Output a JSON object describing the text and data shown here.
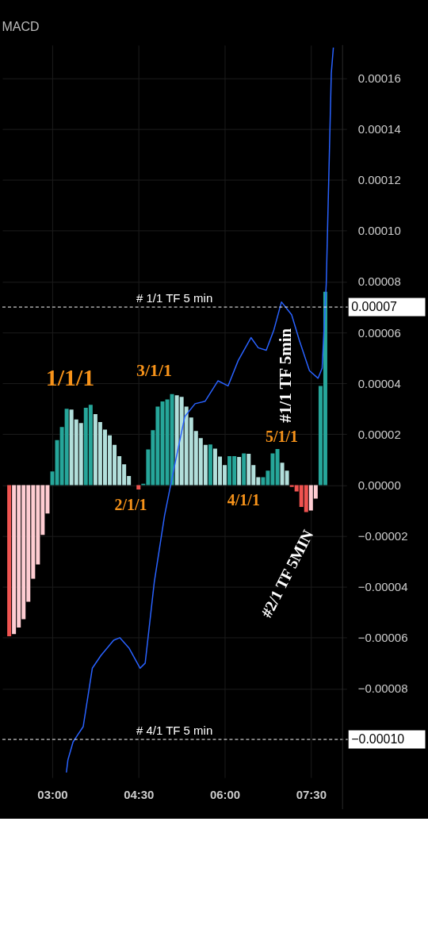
{
  "chart_data": {
    "type": "bar",
    "title": "MACD",
    "xlim": [
      2.2,
      8.05
    ],
    "ylim": [
      -0.000115,
      0.000173
    ],
    "xticks": [
      {
        "value": 3,
        "label": "03:00"
      },
      {
        "value": 4.5,
        "label": "04:30"
      },
      {
        "value": 6,
        "label": "06:00"
      },
      {
        "value": 7.5,
        "label": "07:30"
      }
    ],
    "yticks": [
      {
        "value": -8e-05,
        "label": "−0.00008"
      },
      {
        "value": -6e-05,
        "label": "−0.00006"
      },
      {
        "value": -4e-05,
        "label": "−0.00004"
      },
      {
        "value": -2e-05,
        "label": "−0.00002"
      },
      {
        "value": 0,
        "label": "0.00000"
      },
      {
        "value": 2e-05,
        "label": "0.00002"
      },
      {
        "value": 4e-05,
        "label": "0.00004"
      },
      {
        "value": 6e-05,
        "label": "0.00006"
      },
      {
        "value": 8e-05,
        "label": "0.00008"
      },
      {
        "value": 0.0001,
        "label": "0.00010"
      },
      {
        "value": 0.00012,
        "label": "0.00012"
      },
      {
        "value": 0.00014,
        "label": "0.00014"
      },
      {
        "value": 0.00016,
        "label": "0.00016"
      }
    ],
    "grid": true,
    "series": [
      {
        "x": [
          2.25,
          2.333,
          2.417,
          2.5,
          2.583,
          2.667,
          2.75,
          2.833,
          2.917,
          3,
          3.083,
          3.167,
          3.25,
          3.333,
          3.417,
          3.5,
          3.583,
          3.667,
          3.75,
          3.833,
          3.917,
          4,
          4.083,
          4.167,
          4.25,
          4.333,
          4.417,
          4.5,
          4.583,
          4.667,
          4.75,
          4.833,
          4.917,
          5,
          5.083,
          5.167,
          5.25,
          5.333,
          5.417,
          5.5,
          5.583,
          5.667,
          5.75,
          5.833,
          5.917,
          6,
          6.083,
          6.167,
          6.25,
          6.333,
          6.417,
          6.5,
          6.583,
          6.667,
          6.75,
          6.833,
          6.917,
          7,
          7.083,
          7.167,
          7.25,
          7.333,
          7.417,
          7.5,
          7.583,
          7.667,
          7.75
        ],
        "values": [
          -5.94e-05,
          -5.86e-05,
          -5.6e-05,
          -5.27e-05,
          -4.59e-05,
          -3.68e-05,
          -3.12e-05,
          -1.96e-05,
          -1.12e-05,
          5.4e-06,
          1.77e-05,
          2.28e-05,
          3e-05,
          2.97e-05,
          2.58e-05,
          2.44e-05,
          3.04e-05,
          3.16e-05,
          2.79e-05,
          2.48e-05,
          2.18e-05,
          1.96e-05,
          1.58e-05,
          1.14e-05,
          8.2e-06,
          3.6e-06,
          null,
          -1.7e-06,
          5e-07,
          1.4e-05,
          2.16e-05,
          3.09e-05,
          3.29e-05,
          3.37e-05,
          3.58e-05,
          3.53e-05,
          3.47e-05,
          3.09e-05,
          2.66e-05,
          2.13e-05,
          1.85e-05,
          1.58e-05,
          1.6e-05,
          1.43e-05,
          1.12e-05,
          7.9e-06,
          1.14e-05,
          1.14e-05,
          1.11e-05,
          1.25e-05,
          1.23e-05,
          7.9e-06,
          3.1e-06,
          3.1e-06,
          5.7e-06,
          1.25e-05,
          1.42e-05,
          8.8e-06,
          5.7e-06,
          -7e-07,
          -2.5e-06,
          -8.6e-06,
          -1.06e-05,
          -1e-05,
          -5.3e-06,
          3.9e-05,
          7.6e-05
        ],
        "colors": [
          "#ef5350",
          "#ffcdd2",
          "#ffcdd2",
          "#ffcdd2",
          "#ffcdd2",
          "#ffcdd2",
          "#ffcdd2",
          "#ffcdd2",
          "#ffcdd2",
          "#26a69a",
          "#26a69a",
          "#26a69a",
          "#26a69a",
          "#b2dfdb",
          "#b2dfdb",
          "#b2dfdb",
          "#26a69a",
          "#26a69a",
          "#b2dfdb",
          "#b2dfdb",
          "#b2dfdb",
          "#b2dfdb",
          "#b2dfdb",
          "#b2dfdb",
          "#b2dfdb",
          "#b2dfdb",
          "#b2dfdb",
          "#ef5350",
          "#26a69a",
          "#26a69a",
          "#26a69a",
          "#26a69a",
          "#26a69a",
          "#26a69a",
          "#26a69a",
          "#b2dfdb",
          "#b2dfdb",
          "#b2dfdb",
          "#b2dfdb",
          "#b2dfdb",
          "#b2dfdb",
          "#b2dfdb",
          "#26a69a",
          "#b2dfdb",
          "#b2dfdb",
          "#b2dfdb",
          "#26a69a",
          "#26a69a",
          "#b2dfdb",
          "#26a69a",
          "#b2dfdb",
          "#b2dfdb",
          "#b2dfdb",
          "#26a69a",
          "#26a69a",
          "#26a69a",
          "#26a69a",
          "#b2dfdb",
          "#b2dfdb",
          "#ef5350",
          "#ef5350",
          "#ef5350",
          "#ef5350",
          "#ffcdd2",
          "#ffcdd2",
          "#26a69a",
          "#26a69a"
        ]
      },
      {
        "type": "line",
        "color": "#2962ff",
        "x": [
          3.245,
          3.272,
          3.361,
          3.448,
          3.537,
          3.696,
          3.846,
          4.068,
          4.174,
          4.333,
          4.528,
          4.616,
          4.775,
          4.953,
          5.13,
          5.306,
          5.484,
          5.66,
          5.882,
          6.058,
          6.235,
          6.457,
          6.583,
          6.722,
          6.855,
          6.987,
          7.164,
          7.297,
          7.474,
          7.624,
          7.695,
          7.766,
          7.854,
          7.89
        ],
        "values": [
          -0.000113,
          -0.000108,
          -0.000101,
          -9.8e-05,
          -9.5e-05,
          -7.2e-05,
          -6.7e-05,
          -6.1e-05,
          -6e-05,
          -6.4e-05,
          -7.2e-05,
          -7e-05,
          -3.8e-05,
          -1.2e-05,
          8e-06,
          2.7e-05,
          3.2e-05,
          3.3e-05,
          4.1e-05,
          3.9e-05,
          4.9e-05,
          5.8e-05,
          5.4e-05,
          5.3e-05,
          6.1e-05,
          7.2e-05,
          6.7e-05,
          5.7e-05,
          4.5e-05,
          4.2e-05,
          4.6e-05,
          7.9e-05,
          0.000162,
          0.000172
        ]
      }
    ],
    "ref_lines": [
      {
        "axis": "y",
        "value": 7e-05,
        "label": "# 1/1 TF 5 min",
        "color": "#ffffff",
        "line_style": "dashed"
      },
      {
        "axis": "y",
        "value": -0.0001,
        "label": "# 4/1 TF 5 min",
        "color": "#ffffff",
        "line_style": "dashed"
      }
    ],
    "annotations": [
      "1/1/1",
      "2/1/1",
      "3/1/1",
      "4/1/1",
      "5/1/1",
      "#1/1 TF 5min",
      "#2/1 TF 5MIN",
      {
        "text": "0.00007",
        "y": 7e-05
      },
      {
        "text": "−0.00010",
        "y": -0.0001
      }
    ]
  }
}
